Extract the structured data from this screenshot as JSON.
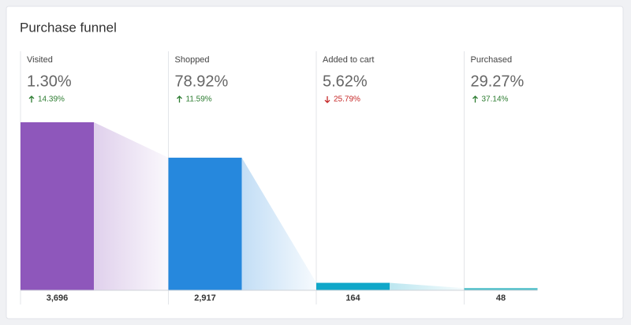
{
  "chart_data": {
    "type": "funnel",
    "title": "Purchase funnel",
    "categories": [
      "Visited",
      "Shopped",
      "Added to cart",
      "Purchased"
    ],
    "values": [
      3696,
      2917,
      164,
      48
    ],
    "value_labels": [
      "3,696",
      "2,917",
      "164",
      "48"
    ],
    "rates": [
      {
        "value": 1.3,
        "label": "1.30%"
      },
      {
        "value": 78.92,
        "label": "78.92%"
      },
      {
        "value": 5.62,
        "label": "5.62%"
      },
      {
        "value": 29.27,
        "label": "29.27%"
      }
    ],
    "changes": [
      {
        "value": 14.39,
        "label": "14.39%"
      },
      {
        "value": 11.59,
        "label": "11.59%"
      },
      {
        "value": -25.79,
        "label": "25.79%"
      },
      {
        "value": 37.14,
        "label": "37.14%"
      }
    ],
    "colors": [
      "#8e57bb",
      "#2688dd",
      "#10a7c9",
      "#4bbec8"
    ]
  }
}
